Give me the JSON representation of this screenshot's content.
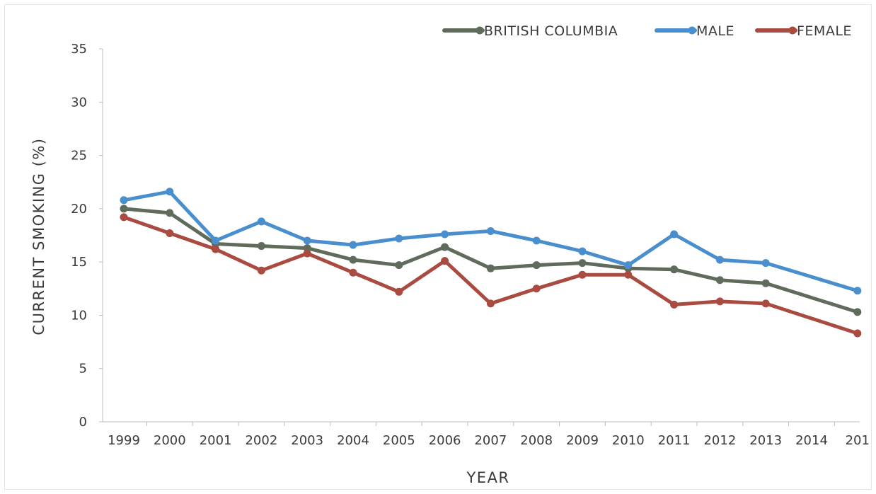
{
  "chart_data": {
    "type": "line",
    "xlabel": "YEAR",
    "ylabel": "CURRENT SMOKING (%)",
    "categories": [
      "1999",
      "2000",
      "2001",
      "2002",
      "2003",
      "2004",
      "2005",
      "2006",
      "2007",
      "2008",
      "2009",
      "2010",
      "2011",
      "2012",
      "2013",
      "2014",
      "201"
    ],
    "ylim": [
      0,
      35
    ],
    "yticks": [
      "0",
      "5",
      "10",
      "15",
      "20",
      "25",
      "30",
      "35"
    ],
    "grid": false,
    "legend_position": "top-right",
    "series": [
      {
        "name": "BRITISH COLUMBIA",
        "color": "#5f6b5b",
        "values": [
          20.0,
          19.6,
          16.7,
          16.5,
          16.3,
          15.2,
          14.7,
          16.4,
          14.4,
          14.7,
          14.9,
          14.4,
          14.3,
          13.3,
          13.0,
          null,
          10.3
        ]
      },
      {
        "name": "MALE",
        "color": "#4a8fcd",
        "values": [
          20.8,
          21.6,
          17.0,
          18.8,
          17.0,
          16.6,
          17.2,
          17.6,
          17.9,
          17.0,
          16.0,
          14.7,
          17.6,
          15.2,
          14.9,
          null,
          12.3
        ]
      },
      {
        "name": "FEMALE",
        "color": "#a94b40",
        "values": [
          19.2,
          17.7,
          16.2,
          14.2,
          15.8,
          14.0,
          12.2,
          15.1,
          11.1,
          12.5,
          13.8,
          13.8,
          11.0,
          11.3,
          11.1,
          null,
          8.3
        ]
      }
    ]
  }
}
